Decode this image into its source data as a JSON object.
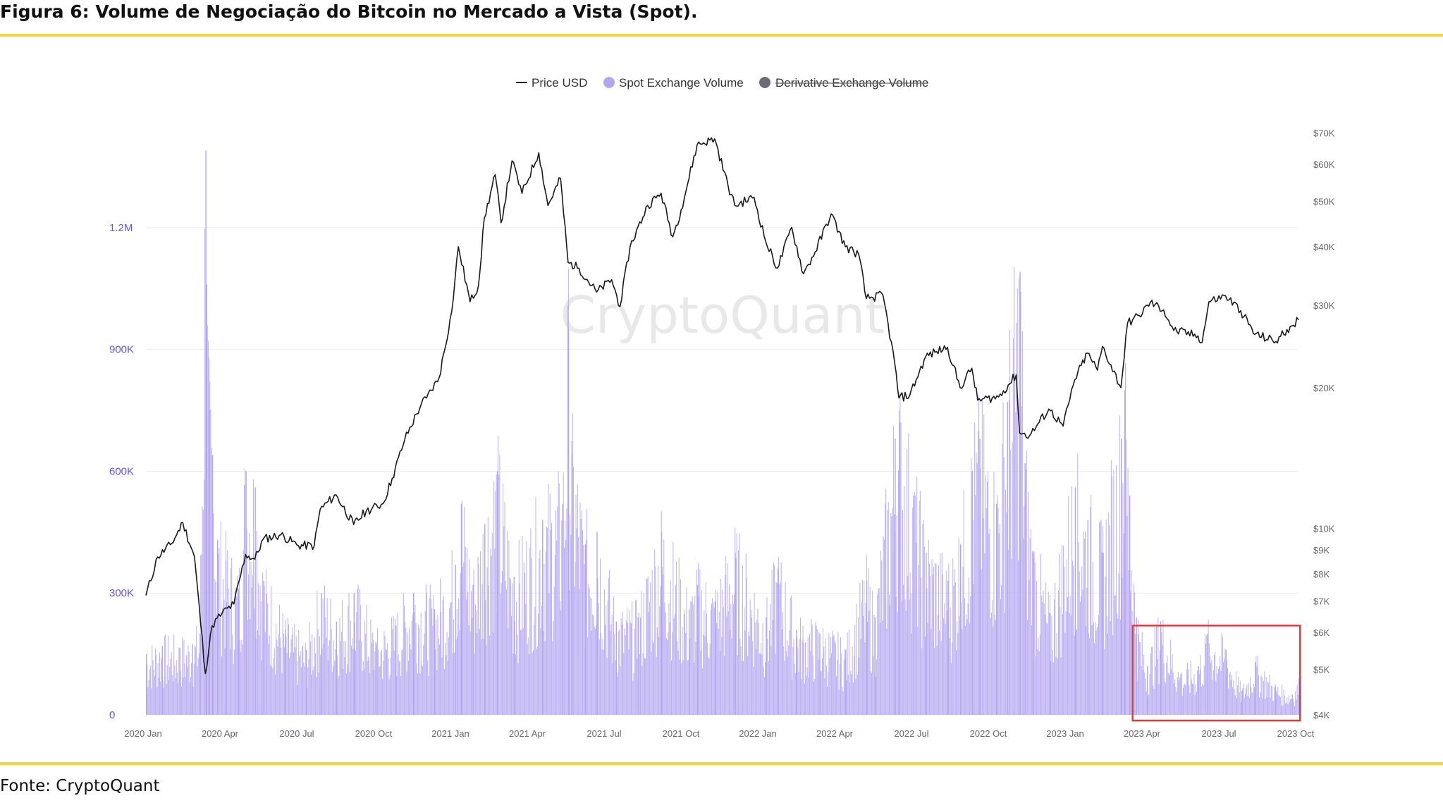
{
  "figure": {
    "title": "Figura 6: Volume de Negociação do Bitcoin no Mercado a Vista (Spot).",
    "source": "Fonte: CryptoQuant",
    "watermark": "CryptoQuant",
    "accent_color": "#f5d733"
  },
  "chart_data": {
    "type": "bar",
    "title": "",
    "xlabel": "",
    "ylabel": "",
    "legend": [
      {
        "name": "Price USD",
        "type": "line",
        "color": "#1a1a1a",
        "active": true
      },
      {
        "name": "Spot Exchange Volume",
        "type": "bar",
        "color": "#b3a6ef",
        "active": true
      },
      {
        "name": "Derivative Exchange Volume",
        "type": "bar",
        "color": "#6e6b78",
        "active": false
      }
    ],
    "legend_position": "top-center",
    "grid": true,
    "x_ticks": [
      "2020 Jan",
      "2020 Apr",
      "2020 Jul",
      "2020 Oct",
      "2021 Jan",
      "2021 Apr",
      "2021 Jul",
      "2021 Oct",
      "2022 Jan",
      "2022 Apr",
      "2022 Jul",
      "2022 Oct",
      "2023 Jan",
      "2023 Apr",
      "2023 Jul",
      "2023 Oct"
    ],
    "y_left": {
      "ticks": [
        "0",
        "300K",
        "600K",
        "900K",
        "1.2M"
      ],
      "tick_values": [
        0,
        300000,
        600000,
        900000,
        1200000
      ],
      "ylim": [
        0,
        1500000
      ],
      "color": "#6a55d8"
    },
    "y_right": {
      "scale": "log",
      "ticks": [
        "$4K",
        "$5K",
        "$6K",
        "$7K",
        "$8K",
        "$9K",
        "$10K",
        "$20K",
        "$30K",
        "$40K",
        "$50K",
        "$60K",
        "$70K"
      ],
      "tick_values": [
        4000,
        5000,
        6000,
        7000,
        8000,
        9000,
        10000,
        20000,
        30000,
        40000,
        50000,
        60000,
        70000
      ],
      "ylim": [
        4000,
        80000
      ]
    },
    "x_range": [
      "2020-01-01",
      "2023-10-08"
    ],
    "series": [
      {
        "name": "Price USD",
        "axis": "right",
        "points": [
          [
            "2020-01-01",
            7200
          ],
          [
            "2020-01-15",
            8700
          ],
          [
            "2020-02-01",
            9300
          ],
          [
            "2020-02-14",
            10300
          ],
          [
            "2020-02-28",
            8700
          ],
          [
            "2020-03-12",
            4900
          ],
          [
            "2020-03-20",
            6200
          ],
          [
            "2020-04-01",
            6600
          ],
          [
            "2020-04-15",
            6900
          ],
          [
            "2020-04-29",
            8800
          ],
          [
            "2020-05-10",
            8600
          ],
          [
            "2020-05-20",
            9500
          ],
          [
            "2020-06-10",
            9700
          ],
          [
            "2020-07-01",
            9200
          ],
          [
            "2020-07-20",
            9200
          ],
          [
            "2020-07-27",
            11000
          ],
          [
            "2020-08-15",
            11800
          ],
          [
            "2020-09-05",
            10200
          ],
          [
            "2020-09-20",
            10900
          ],
          [
            "2020-10-10",
            11300
          ],
          [
            "2020-10-21",
            12800
          ],
          [
            "2020-11-05",
            15500
          ],
          [
            "2020-11-25",
            18500
          ],
          [
            "2020-12-01",
            19000
          ],
          [
            "2020-12-16",
            21000
          ],
          [
            "2020-12-31",
            29000
          ],
          [
            "2021-01-08",
            40000
          ],
          [
            "2021-01-22",
            30500
          ],
          [
            "2021-02-01",
            33000
          ],
          [
            "2021-02-08",
            46000
          ],
          [
            "2021-02-21",
            57000
          ],
          [
            "2021-02-28",
            45000
          ],
          [
            "2021-03-13",
            61000
          ],
          [
            "2021-03-25",
            52000
          ],
          [
            "2021-04-14",
            63500
          ],
          [
            "2021-04-25",
            49000
          ],
          [
            "2021-05-10",
            56000
          ],
          [
            "2021-05-19",
            37000
          ],
          [
            "2021-06-01",
            36000
          ],
          [
            "2021-06-22",
            32000
          ],
          [
            "2021-07-10",
            34000
          ],
          [
            "2021-07-20",
            29800
          ],
          [
            "2021-08-01",
            40000
          ],
          [
            "2021-08-22",
            49000
          ],
          [
            "2021-09-07",
            52000
          ],
          [
            "2021-09-21",
            42000
          ],
          [
            "2021-10-01",
            48000
          ],
          [
            "2021-10-20",
            66000
          ],
          [
            "2021-11-10",
            68000
          ],
          [
            "2021-11-26",
            54000
          ],
          [
            "2021-12-04",
            49000
          ],
          [
            "2021-12-27",
            51000
          ],
          [
            "2022-01-10",
            41000
          ],
          [
            "2022-01-24",
            36000
          ],
          [
            "2022-02-10",
            44000
          ],
          [
            "2022-02-24",
            35000
          ],
          [
            "2022-03-10",
            39000
          ],
          [
            "2022-03-29",
            47000
          ],
          [
            "2022-04-15",
            40000
          ],
          [
            "2022-05-01",
            38500
          ],
          [
            "2022-05-10",
            31000
          ],
          [
            "2022-05-30",
            31500
          ],
          [
            "2022-06-13",
            22500
          ],
          [
            "2022-06-18",
            19000
          ],
          [
            "2022-07-01",
            19300
          ],
          [
            "2022-07-20",
            23300
          ],
          [
            "2022-07-31",
            23800
          ],
          [
            "2022-08-15",
            24400
          ],
          [
            "2022-08-30",
            20000
          ],
          [
            "2022-09-13",
            22000
          ],
          [
            "2022-09-20",
            18800
          ],
          [
            "2022-10-15",
            19100
          ],
          [
            "2022-11-05",
            21300
          ],
          [
            "2022-11-09",
            16000
          ],
          [
            "2022-11-21",
            15800
          ],
          [
            "2022-12-14",
            18000
          ],
          [
            "2022-12-31",
            16550
          ],
          [
            "2023-01-14",
            20800
          ],
          [
            "2023-01-29",
            23700
          ],
          [
            "2023-02-10",
            21800
          ],
          [
            "2023-02-16",
            24500
          ],
          [
            "2023-03-10",
            20000
          ],
          [
            "2023-03-18",
            27500
          ],
          [
            "2023-04-01",
            28500
          ],
          [
            "2023-04-14",
            30400
          ],
          [
            "2023-04-30",
            29300
          ],
          [
            "2023-05-12",
            26500
          ],
          [
            "2023-06-10",
            25800
          ],
          [
            "2023-06-15",
            25000
          ],
          [
            "2023-06-23",
            30500
          ],
          [
            "2023-07-13",
            31400
          ],
          [
            "2023-07-31",
            29200
          ],
          [
            "2023-08-17",
            26000
          ],
          [
            "2023-09-11",
            25100
          ],
          [
            "2023-09-28",
            27000
          ],
          [
            "2023-10-08",
            27900
          ]
        ]
      },
      {
        "name": "Spot Exchange Volume",
        "axis": "left",
        "points": [
          [
            "2020-01-01",
            150000
          ],
          [
            "2020-01-20",
            170000
          ],
          [
            "2020-02-10",
            165000
          ],
          [
            "2020-02-25",
            175000
          ],
          [
            "2020-03-05",
            200000
          ],
          [
            "2020-03-12",
            1390000
          ],
          [
            "2020-03-13",
            1060000
          ],
          [
            "2020-03-16",
            750000
          ],
          [
            "2020-03-20",
            640000
          ],
          [
            "2020-03-26",
            430000
          ],
          [
            "2020-04-05",
            380000
          ],
          [
            "2020-04-20",
            310000
          ],
          [
            "2020-04-29",
            600000
          ],
          [
            "2020-05-10",
            560000
          ],
          [
            "2020-05-20",
            330000
          ],
          [
            "2020-06-15",
            210000
          ],
          [
            "2020-07-10",
            160000
          ],
          [
            "2020-07-28",
            300000
          ],
          [
            "2020-08-15",
            230000
          ],
          [
            "2020-09-05",
            300000
          ],
          [
            "2020-10-01",
            180000
          ],
          [
            "2020-10-25",
            220000
          ],
          [
            "2020-11-15",
            300000
          ],
          [
            "2020-12-10",
            260000
          ],
          [
            "2021-01-04",
            370000
          ],
          [
            "2021-01-11",
            520000
          ],
          [
            "2021-01-25",
            320000
          ],
          [
            "2021-02-08",
            470000
          ],
          [
            "2021-02-23",
            600000
          ],
          [
            "2021-03-15",
            340000
          ],
          [
            "2021-04-18",
            480000
          ],
          [
            "2021-05-12",
            520000
          ],
          [
            "2021-05-19",
            950000
          ],
          [
            "2021-05-23",
            640000
          ],
          [
            "2021-06-08",
            420000
          ],
          [
            "2021-06-22",
            450000
          ],
          [
            "2021-07-15",
            230000
          ],
          [
            "2021-08-10",
            240000
          ],
          [
            "2021-09-07",
            450000
          ],
          [
            "2021-10-10",
            260000
          ],
          [
            "2021-10-20",
            320000
          ],
          [
            "2021-11-10",
            280000
          ],
          [
            "2021-12-04",
            400000
          ],
          [
            "2022-01-10",
            240000
          ],
          [
            "2022-01-24",
            360000
          ],
          [
            "2022-02-15",
            210000
          ],
          [
            "2022-03-15",
            200000
          ],
          [
            "2022-04-15",
            160000
          ],
          [
            "2022-05-10",
            330000
          ],
          [
            "2022-05-20",
            240000
          ],
          [
            "2022-06-13",
            680000
          ],
          [
            "2022-06-18",
            720000
          ],
          [
            "2022-07-05",
            540000
          ],
          [
            "2022-07-20",
            400000
          ],
          [
            "2022-08-15",
            330000
          ],
          [
            "2022-08-30",
            420000
          ],
          [
            "2022-09-13",
            600000
          ],
          [
            "2022-09-22",
            680000
          ],
          [
            "2022-10-12",
            520000
          ],
          [
            "2022-10-25",
            770000
          ],
          [
            "2022-11-09",
            1090000
          ],
          [
            "2022-11-15",
            620000
          ],
          [
            "2022-11-25",
            400000
          ],
          [
            "2022-12-15",
            250000
          ],
          [
            "2023-01-14",
            560000
          ],
          [
            "2023-01-29",
            480000
          ],
          [
            "2023-02-15",
            400000
          ],
          [
            "2023-03-10",
            680000
          ],
          [
            "2023-03-14",
            800000
          ],
          [
            "2023-03-20",
            540000
          ],
          [
            "2023-03-28",
            240000
          ],
          [
            "2023-04-10",
            120000
          ],
          [
            "2023-04-26",
            230000
          ],
          [
            "2023-05-20",
            100000
          ],
          [
            "2023-06-10",
            120000
          ],
          [
            "2023-06-21",
            200000
          ],
          [
            "2023-07-13",
            160000
          ],
          [
            "2023-08-01",
            60000
          ],
          [
            "2023-08-17",
            130000
          ],
          [
            "2023-09-10",
            70000
          ],
          [
            "2023-09-30",
            50000
          ],
          [
            "2023-10-08",
            80000
          ]
        ]
      }
    ],
    "annotations": [
      {
        "type": "highlight-box",
        "color": "#e03a3a",
        "x_start": "2023-03-24",
        "x_end": "2023-10-10",
        "y_start": 0,
        "y_end": 220000
      }
    ]
  }
}
